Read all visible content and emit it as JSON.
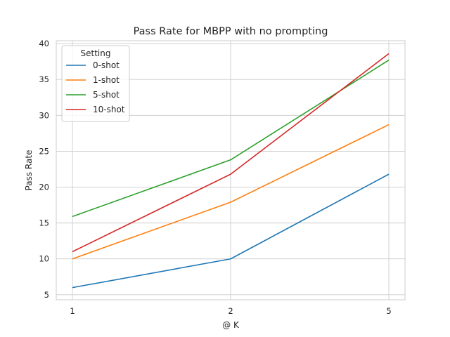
{
  "chart_data": {
    "type": "line",
    "title": "Pass Rate for MBPP with no prompting",
    "xlabel": "@ K",
    "ylabel": "Pass Rate",
    "categories": [
      "1",
      "2",
      "5"
    ],
    "ylim": [
      4.3,
      40.4
    ],
    "yticks": [
      5,
      10,
      15,
      20,
      25,
      30,
      35,
      40
    ],
    "grid": true,
    "legend": {
      "title": "Setting",
      "placement": "top-left"
    },
    "series": [
      {
        "name": "0-shot",
        "values": [
          6.0,
          10.0,
          21.8
        ],
        "color": "#1f77b4"
      },
      {
        "name": "1-shot",
        "values": [
          10.0,
          17.9,
          28.7
        ],
        "color": "#ff7f0e"
      },
      {
        "name": "5-shot",
        "values": [
          15.9,
          23.8,
          37.7
        ],
        "color": "#2ca02c"
      },
      {
        "name": "10-shot",
        "values": [
          11.0,
          21.8,
          38.6
        ],
        "color": "#d62728"
      }
    ]
  }
}
